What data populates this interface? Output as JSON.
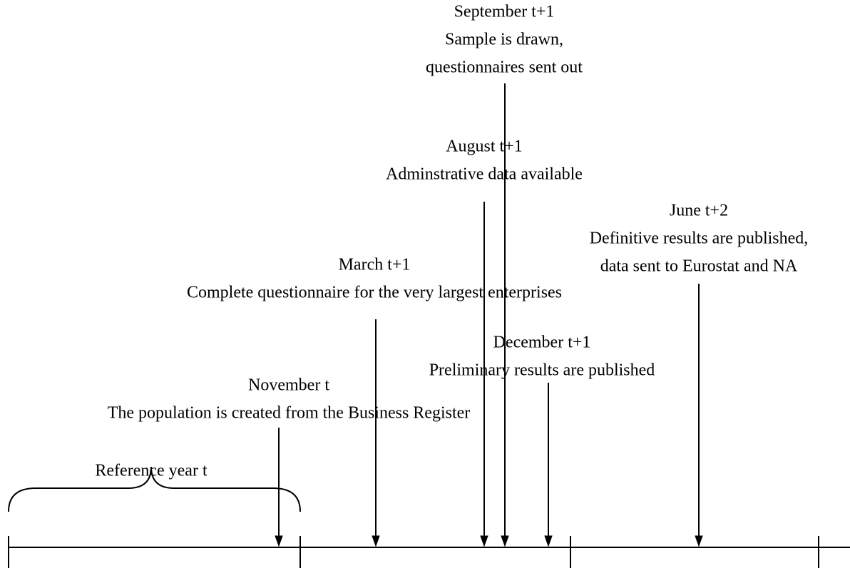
{
  "reference_period": "Reference year t",
  "events": [
    {
      "date": "November t",
      "lines": [
        "The population is created from the Business Register"
      ]
    },
    {
      "date": "March t+1",
      "lines": [
        "Complete questionnaire for the very largest enterprises"
      ]
    },
    {
      "date": "August t+1",
      "lines": [
        "Adminstrative data available"
      ]
    },
    {
      "date": "September t+1",
      "lines": [
        "Sample is drawn,",
        "questionnaires sent out"
      ]
    },
    {
      "date": "December t+1",
      "lines": [
        "Preliminary results are published"
      ]
    },
    {
      "date": "June t+2",
      "lines": [
        "Definitive results are published,",
        "data sent to Eurostat and NA"
      ]
    }
  ]
}
